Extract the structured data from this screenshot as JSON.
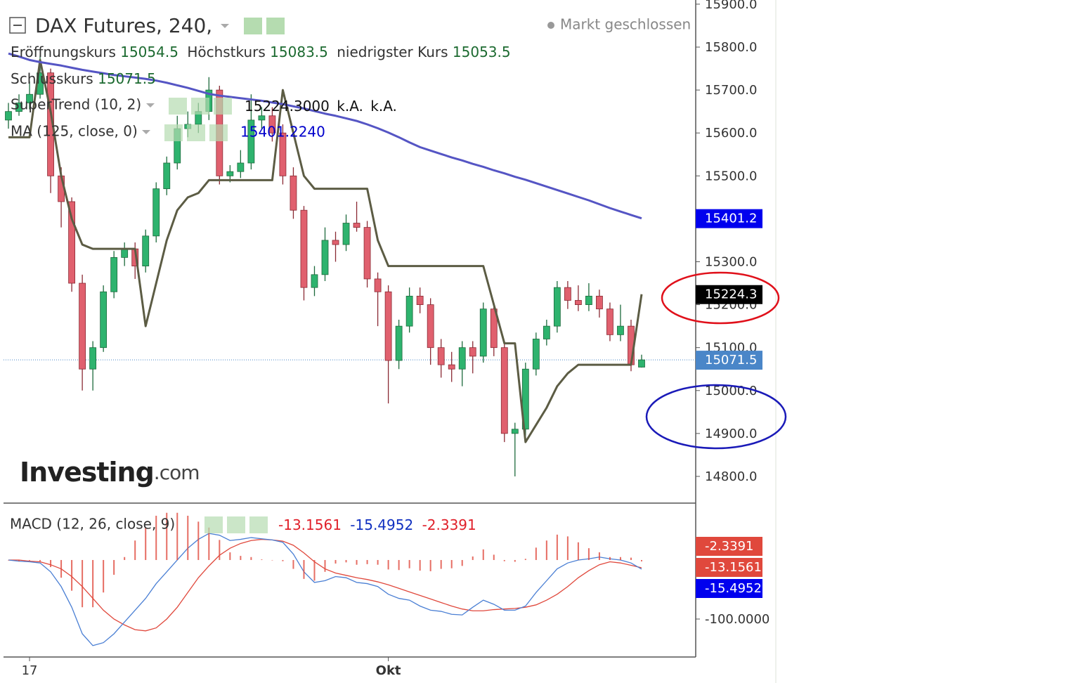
{
  "chart_data": [
    {
      "type": "candlestick",
      "title": "DAX Futures, 240,",
      "status": "Markt geschlossen",
      "ohlc_labels": [
        "Eröffnungskurs",
        "Höchstkurs",
        "niedrigster Kurs",
        "Schlusskurs"
      ],
      "categories": [
        null,
        null,
        "17",
        null,
        null,
        null,
        null,
        null,
        null,
        null,
        null,
        null,
        null,
        null,
        null,
        null,
        null,
        null,
        null,
        null,
        null,
        null,
        null,
        null,
        null,
        null,
        null,
        null,
        null,
        null,
        null,
        null,
        null,
        null,
        null,
        null,
        "Okt",
        null,
        null,
        null,
        null,
        null,
        null,
        null,
        null,
        null,
        null,
        null,
        null,
        null,
        null,
        null,
        null,
        null,
        null,
        null,
        null,
        null,
        null,
        null,
        null
      ],
      "open": [
        15630,
        15650,
        15670,
        15690,
        15740,
        15500,
        15440,
        15250,
        15050,
        15100,
        15230,
        15310,
        15330,
        15290,
        15360,
        15470,
        15530,
        15610,
        15620,
        15650,
        15700,
        15500,
        15510,
        15530,
        15630,
        15640,
        15600,
        15500,
        15420,
        15240,
        15270,
        15350,
        15340,
        15390,
        15380,
        15260,
        15230,
        15070,
        15150,
        15220,
        15200,
        15100,
        15060,
        15050,
        15100,
        15080,
        15190,
        15100,
        14900,
        14910,
        15050,
        15120,
        15150,
        15240,
        15210,
        15200,
        15220,
        15190,
        15130,
        15150,
        15054.5
      ],
      "high": [
        15670,
        15690,
        15720,
        15780,
        15750,
        15520,
        15450,
        15270,
        15115,
        15245,
        15325,
        15345,
        15345,
        15375,
        15485,
        15545,
        15640,
        15650,
        15670,
        15730,
        15710,
        15525,
        15560,
        15690,
        15660,
        15660,
        15620,
        15520,
        15430,
        15290,
        15380,
        15370,
        15410,
        15440,
        15395,
        15275,
        15245,
        15165,
        15240,
        15240,
        15215,
        15120,
        15090,
        15115,
        15115,
        15205,
        15205,
        15115,
        14925,
        15065,
        15135,
        15165,
        15255,
        15255,
        15245,
        15250,
        15235,
        15205,
        15200,
        15165,
        15083.5
      ],
      "low": [
        15610,
        15640,
        15655,
        15680,
        15460,
        15380,
        15230,
        15000,
        15000,
        15090,
        15215,
        15290,
        15260,
        15275,
        15345,
        15455,
        15515,
        15590,
        15600,
        15630,
        15480,
        15485,
        15495,
        15515,
        15610,
        15580,
        15480,
        15400,
        15210,
        15220,
        15255,
        15300,
        15325,
        15370,
        15240,
        15150,
        14970,
        15050,
        15135,
        15180,
        15060,
        15030,
        15020,
        15010,
        15040,
        15065,
        15080,
        14880,
        14800,
        14895,
        15035,
        15105,
        15135,
        15190,
        15185,
        15185,
        15170,
        15115,
        15115,
        15045,
        15053.5
      ],
      "close": [
        15650,
        15670,
        15690,
        15740,
        15500,
        15440,
        15250,
        15050,
        15100,
        15230,
        15310,
        15330,
        15290,
        15360,
        15470,
        15530,
        15610,
        15620,
        15650,
        15700,
        15500,
        15510,
        15530,
        15630,
        15640,
        15600,
        15500,
        15420,
        15240,
        15270,
        15350,
        15340,
        15390,
        15380,
        15260,
        15230,
        15070,
        15150,
        15220,
        15200,
        15100,
        15060,
        15050,
        15100,
        15080,
        15190,
        15100,
        14900,
        14910,
        15050,
        15120,
        15150,
        15240,
        15210,
        15200,
        15220,
        15190,
        15130,
        15150,
        15060,
        15071.5
      ],
      "up_color": "#2eb36e",
      "down_color": "#e0606e",
      "last_price_color": "#4a86c8",
      "series": [
        {
          "name": "SuperTrend (10, 2)",
          "legend_values": [
            "15224.3000",
            "k.A.",
            "k.A."
          ],
          "color": "#5c5c44",
          "badge_color": "#000000",
          "values": [
            15590,
            15590,
            15590,
            15770,
            15650,
            15500,
            15400,
            15340,
            15330,
            15330,
            15330,
            15330,
            15330,
            15150,
            15250,
            15350,
            15420,
            15450,
            15460,
            15490,
            15490,
            15490,
            15490,
            15490,
            15490,
            15490,
            15700,
            15600,
            15500,
            15470,
            15470,
            15470,
            15470,
            15470,
            15470,
            15350,
            15290,
            15290,
            15290,
            15290,
            15290,
            15290,
            15290,
            15290,
            15290,
            15290,
            15200,
            15110,
            15110,
            14880,
            14920,
            14960,
            15010,
            15040,
            15060,
            15060,
            15060,
            15060,
            15060,
            15060,
            15224.3
          ]
        },
        {
          "name": "MA (125, close, 0)",
          "legend_values": [
            "15401.2240"
          ],
          "color": "#5555c4",
          "badge_color": "#0000ee",
          "badge": "15401.2",
          "values": [
            15785,
            15778,
            15770,
            15765,
            15761,
            15757,
            15752,
            15747,
            15743,
            15739,
            15735,
            15732,
            15729,
            15726,
            15722,
            15717,
            15711,
            15705,
            15698,
            15691,
            15687,
            15684,
            15681,
            15678,
            15675,
            15671,
            15667,
            15662,
            15657,
            15651,
            15645,
            15640,
            15634,
            15628,
            15620,
            15611,
            15601,
            15590,
            15578,
            15567,
            15559,
            15551,
            15543,
            15536,
            15528,
            15521,
            15513,
            15506,
            15498,
            15491,
            15483,
            15475,
            15467,
            15459,
            15451,
            15443,
            15434,
            15425,
            15417,
            15409,
            15401.224
          ]
        }
      ],
      "ylim": [
        14739.4,
        15909.7
      ],
      "yticks": [
        {
          "value": 14800,
          "label": "14800.0"
        },
        {
          "value": 14900,
          "label": "14900.0"
        },
        {
          "value": 15000,
          "label": "15000.0"
        },
        {
          "value": 15100,
          "label": "15100.0"
        },
        {
          "value": 15200,
          "label": "15200.0"
        },
        {
          "value": 15300,
          "label": "15300.0"
        },
        {
          "value": 15400,
          "label": "15400.0"
        },
        {
          "value": 15500,
          "label": "15500.0"
        },
        {
          "value": 15600,
          "label": "15600.0"
        },
        {
          "value": 15700,
          "label": "15700.0"
        },
        {
          "value": 15800,
          "label": "15800.0"
        },
        {
          "value": 15900,
          "label": "15900.0"
        }
      ],
      "logo": "Investing",
      "logo_suffix": ".com"
    },
    {
      "type": "macd",
      "title": "MACD (12, 26, close, 9)",
      "series": [
        {
          "kind": "line",
          "color": "#e0483c",
          "values": [
            0,
            0,
            -2,
            -3,
            -8,
            -15,
            -28,
            -45,
            -65,
            -85,
            -100,
            -110,
            -118,
            -120,
            -115,
            -100,
            -80,
            -55,
            -30,
            -10,
            8,
            20,
            28,
            33,
            35,
            34,
            32,
            25,
            12,
            -3,
            -15,
            -22,
            -26,
            -30,
            -33,
            -37,
            -42,
            -48,
            -54,
            -60,
            -66,
            -72,
            -78,
            -83,
            -86,
            -86,
            -84,
            -83,
            -82,
            -80,
            -76,
            -68,
            -58,
            -45,
            -30,
            -18,
            -8,
            -3,
            -5,
            -9,
            -13.1561
          ]
        },
        {
          "kind": "line",
          "color": "#4a7fd4",
          "badge_color": "#0000ee",
          "values": [
            0,
            -2,
            -3,
            -5,
            -20,
            -45,
            -80,
            -125,
            -145,
            -140,
            -125,
            -105,
            -85,
            -65,
            -40,
            -20,
            0,
            20,
            35,
            45,
            42,
            33,
            35,
            38,
            36,
            34,
            30,
            10,
            -20,
            -38,
            -35,
            -28,
            -30,
            -38,
            -40,
            -45,
            -58,
            -65,
            -68,
            -78,
            -85,
            -87,
            -92,
            -93,
            -80,
            -68,
            -75,
            -85,
            -85,
            -78,
            -55,
            -35,
            -15,
            -5,
            0,
            2,
            5,
            2,
            0,
            -5,
            -15.4952
          ]
        },
        {
          "kind": "bar",
          "color": "#e0483c",
          "values": [
            0,
            -2,
            -1,
            -2,
            -12,
            -30,
            -52,
            -80,
            -80,
            -55,
            -25,
            5,
            33,
            55,
            75,
            80,
            80,
            75,
            65,
            55,
            34,
            13,
            7,
            5,
            1,
            0,
            -2,
            -15,
            -32,
            -35,
            -20,
            -6,
            -4,
            -8,
            -7,
            -8,
            -16,
            -17,
            -14,
            -18,
            -19,
            -15,
            -14,
            -10,
            6,
            18,
            9,
            -2,
            -3,
            2,
            21,
            33,
            43,
            40,
            30,
            20,
            13,
            5,
            5,
            4,
            -2.3391
          ]
        }
      ],
      "ylim": [
        -164.3,
        94
      ],
      "yticks": [
        {
          "value": -100,
          "label": "-100.0000"
        }
      ]
    }
  ]
}
